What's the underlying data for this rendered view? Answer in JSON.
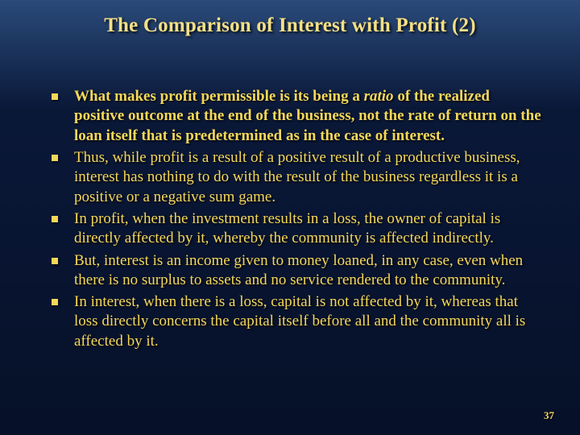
{
  "slide": {
    "title": "The Comparison of Interest with Profit (2)",
    "page_number": "37",
    "bullets": [
      {
        "bold_all": true,
        "pre": "What makes profit permissible is its being a ",
        "italic": "ratio",
        "post": " of the realized positive outcome at the end of the business, not the rate of return on the loan itself that is predetermined as in the case of interest."
      },
      {
        "bold_all": false,
        "text": "Thus, while profit is a result of a positive result of a productive business, interest has nothing to do with the result of the business regardless it is a positive or a negative sum game."
      },
      {
        "bold_all": false,
        "text": "In profit, when the investment results in a loss, the owner of capital is directly affected by it, whereby the community is affected indirectly."
      },
      {
        "bold_all": false,
        "text": "But, interest is an income given to money loaned, in any case, even when there is no surplus to assets and no service rendered to the community."
      },
      {
        "bold_all": false,
        "text": "In interest, when there is a loss, capital is not affected by it, whereas that loss directly concerns the capital itself before all and the community all is affected by it."
      }
    ],
    "colors": {
      "text": "#f4d85a",
      "bg_top": "#2a4a7a",
      "bg_bottom": "#061028"
    }
  }
}
